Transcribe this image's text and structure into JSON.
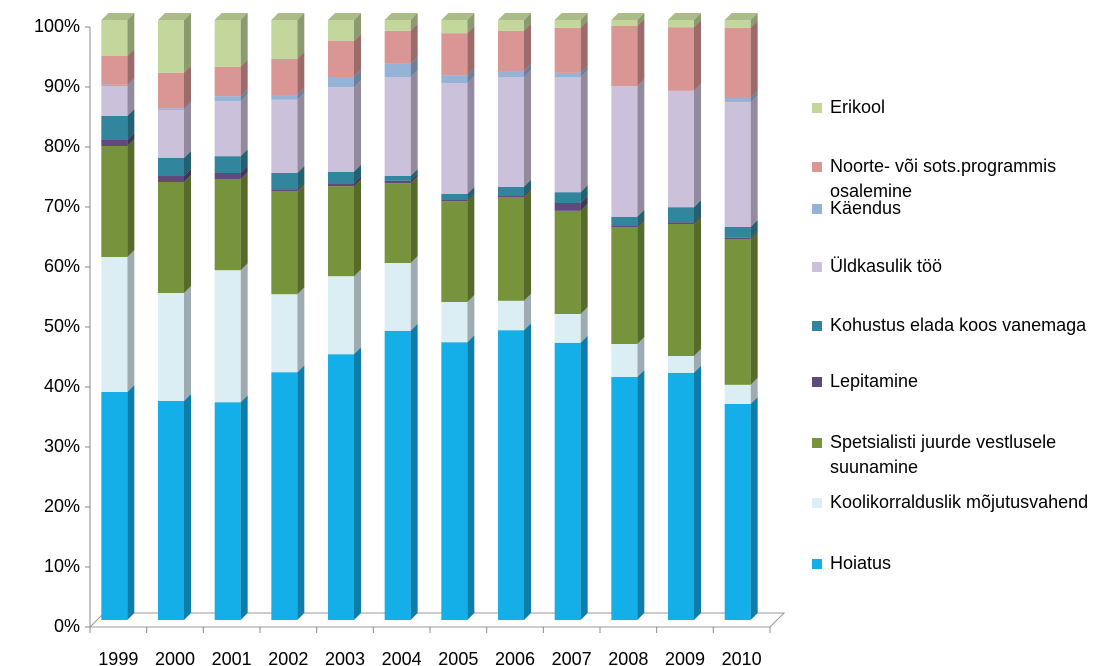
{
  "chart_data": {
    "type": "stacked-bar",
    "categories": [
      "1999",
      "2000",
      "2001",
      "2002",
      "2003",
      "2004",
      "2005",
      "2006",
      "2007",
      "2008",
      "2009",
      "2010"
    ],
    "series": [
      {
        "name": "Hoiatus",
        "color": "#14aee8",
        "values": [
          38,
          36.5,
          36.3,
          41.3,
          44.3,
          48.2,
          46.3,
          48.3,
          46.2,
          40.5,
          41.2,
          36
        ]
      },
      {
        "name": "Koolikorralduslik mõjutusvahend",
        "color": "#dbeef4",
        "values": [
          22.5,
          18,
          22,
          13,
          13,
          11.3,
          6.7,
          4.9,
          4.8,
          5.5,
          2.8,
          3.2
        ]
      },
      {
        "name": "Spetsialisti juurde vestlusele suunamine",
        "color": "#77933c",
        "values": [
          18.5,
          18.5,
          15.2,
          17.2,
          15,
          13.3,
          16.8,
          17.3,
          17.2,
          19.5,
          22,
          24.3
        ]
      },
      {
        "name": "Lepitamine",
        "color": "#604a7b",
        "values": [
          1,
          1,
          1,
          0.3,
          0.5,
          0.4,
          0.2,
          0.3,
          1.3,
          0.3,
          0.3,
          0.2
        ]
      },
      {
        "name": "Kohustus elada koos vanemaga",
        "color": "#31859c",
        "values": [
          4,
          3,
          2.8,
          2.7,
          1.9,
          0.8,
          1,
          1.4,
          1.8,
          1.4,
          2.5,
          1.8
        ]
      },
      {
        "name": "Üldkasulik töö",
        "color": "#ccc1da",
        "values": [
          5,
          8,
          9.2,
          12.2,
          14.1,
          16.5,
          18.5,
          18.3,
          19.2,
          21.8,
          19.4,
          20.8
        ]
      },
      {
        "name": "Käendus",
        "color": "#95b3d7",
        "values": [
          0.2,
          0.3,
          0.8,
          0.8,
          1.7,
          2.2,
          1.3,
          1,
          0.7,
          0,
          0,
          0.7
        ]
      },
      {
        "name": "Noorte- või sots.programmis osalemine",
        "color": "#d99694",
        "values": [
          4.8,
          5.9,
          4.9,
          6,
          6,
          5.5,
          7,
          6.7,
          7.5,
          10,
          10.6,
          11.7
        ]
      },
      {
        "name": "Erikool",
        "color": "#c3d69b",
        "values": [
          6,
          8.8,
          7.8,
          6.5,
          3.5,
          1.8,
          2.2,
          1.8,
          1.3,
          1,
          1.2,
          1.3
        ]
      }
    ],
    "ylim": [
      0,
      100
    ],
    "yticks": [
      {
        "value": 0,
        "label": "0%"
      },
      {
        "value": 10,
        "label": "10%"
      },
      {
        "value": 20,
        "label": "20%"
      },
      {
        "value": 30,
        "label": "30%"
      },
      {
        "value": 40,
        "label": "40%"
      },
      {
        "value": 50,
        "label": "50%"
      },
      {
        "value": 60,
        "label": "60%"
      },
      {
        "value": 70,
        "label": "70%"
      },
      {
        "value": 80,
        "label": "80%"
      },
      {
        "value": 90,
        "label": "90%"
      },
      {
        "value": 100,
        "label": "100%"
      }
    ],
    "legend": "right"
  }
}
